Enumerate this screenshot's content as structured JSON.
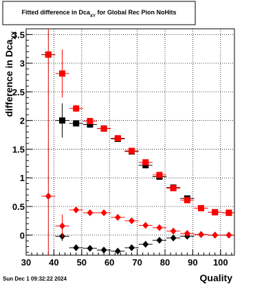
{
  "chart_data": {
    "type": "scatter",
    "title_main": "Fitted difference in Dca",
    "title_sub": "XY",
    "title_rest": " for Global Rec Pion NoHits",
    "xlabel": "Quality",
    "ylabel": "difference in Dca",
    "ylabel_sub": "XY",
    "xlim": [
      30,
      105
    ],
    "ylim": [
      -0.35,
      3.6
    ],
    "x_ticks": [
      30,
      40,
      50,
      60,
      70,
      80,
      90,
      100
    ],
    "y_ticks": [
      0,
      0.5,
      1,
      1.5,
      2,
      2.5,
      3,
      3.5
    ],
    "x_tick_labels": [
      "30",
      "40",
      "50",
      "60",
      "70",
      "80",
      "90",
      "100"
    ],
    "y_tick_labels": [
      "0",
      "0.5",
      "1",
      "1.5",
      "2",
      "2.5",
      "3",
      "3.5"
    ],
    "grid": true,
    "vertical_line_x": 38,
    "series": [
      {
        "color": "#000000",
        "marker": "square",
        "x": [
          38,
          43,
          48,
          53,
          58,
          63,
          68,
          73,
          78,
          83,
          88,
          93,
          98,
          103
        ],
        "y": [
          3.15,
          2.0,
          1.95,
          1.93,
          1.86,
          1.68,
          1.46,
          1.22,
          1.02,
          0.83,
          0.64,
          0.47,
          0.4,
          0.39
        ],
        "err": [
          0.05,
          0.3,
          0.05,
          0.04,
          0.03,
          0.03,
          0.03,
          0.03,
          0.03,
          0.03,
          0.03,
          0.03,
          0.03,
          0.03
        ]
      },
      {
        "color": "#ff0000",
        "marker": "square",
        "x": [
          38,
          43,
          48,
          53,
          58,
          63,
          68,
          73,
          78,
          83,
          88,
          93,
          98,
          103
        ],
        "y": [
          3.15,
          2.82,
          2.21,
          1.99,
          1.86,
          1.69,
          1.47,
          1.27,
          1.05,
          0.82,
          0.61,
          0.47,
          0.4,
          0.39
        ],
        "err": [
          0.05,
          0.42,
          0.06,
          0.05,
          0.03,
          0.03,
          0.03,
          0.03,
          0.03,
          0.03,
          0.03,
          0.03,
          0.03,
          0.03
        ]
      },
      {
        "color": "#000000",
        "marker": "diamond",
        "x": [
          38,
          43,
          48,
          53,
          58,
          63,
          68,
          73,
          78,
          83,
          88,
          93,
          98,
          103
        ],
        "y": [
          0.68,
          -0.02,
          -0.22,
          -0.23,
          -0.26,
          -0.28,
          -0.22,
          -0.16,
          -0.09,
          -0.05,
          -0.02,
          0.01,
          0.0,
          0.0
        ],
        "err": [
          0.03,
          0.08,
          0.03,
          0.02,
          0.02,
          0.02,
          0.02,
          0.02,
          0.02,
          0.02,
          0.02,
          0.02,
          0.02,
          0.02
        ]
      },
      {
        "color": "#ff0000",
        "marker": "diamond",
        "x": [
          38,
          43,
          48,
          53,
          58,
          63,
          68,
          73,
          78,
          83,
          88,
          93,
          98,
          103
        ],
        "y": [
          0.68,
          0.16,
          0.44,
          0.39,
          0.39,
          0.31,
          0.25,
          0.17,
          0.13,
          0.07,
          0.03,
          0.01,
          0.0,
          0.0
        ],
        "err": [
          0.03,
          0.2,
          0.03,
          0.02,
          0.02,
          0.02,
          0.02,
          0.02,
          0.02,
          0.02,
          0.02,
          0.02,
          0.02,
          0.02
        ]
      }
    ]
  },
  "footer": {
    "datestamp": "Sun Dec  1 09:32:22 2024"
  }
}
